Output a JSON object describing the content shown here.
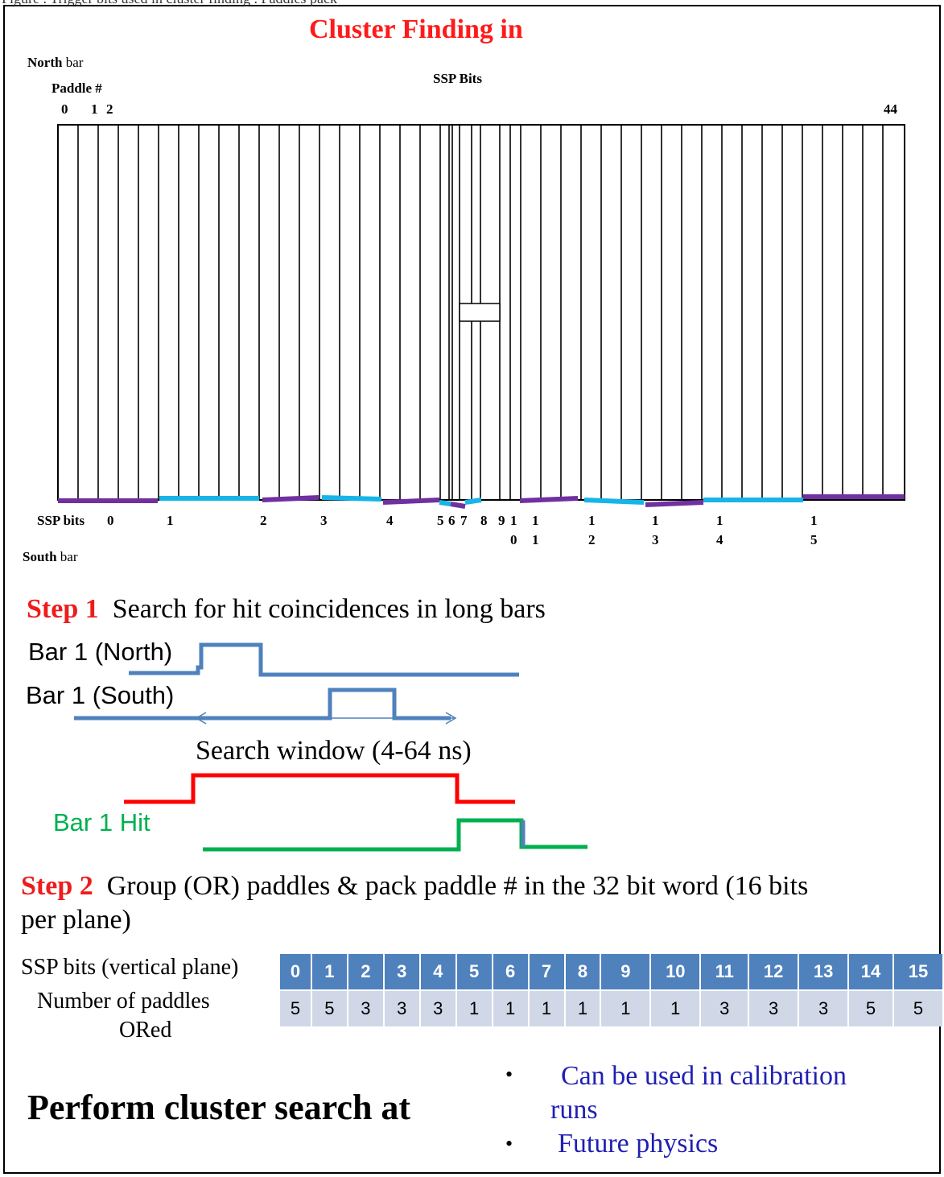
{
  "header_cut": "Figure   . Trigger bits used in cluster finding  .  Paddles pack",
  "title": "Cluster Finding in",
  "north_label": {
    "bold": "North",
    "rest": " bar"
  },
  "paddle_label": "Paddle #",
  "paddle_nums": [
    "0",
    "1",
    "2"
  ],
  "paddle_last": "44",
  "ssp_bits_header": "SSP Bits",
  "ssp_bits_row_label": "SSP bits",
  "ssp_bit_labels": [
    {
      "top": "0",
      "bottom": ""
    },
    {
      "top": "1",
      "bottom": ""
    },
    {
      "top": "2",
      "bottom": ""
    },
    {
      "top": "3",
      "bottom": ""
    },
    {
      "top": "4",
      "bottom": ""
    },
    {
      "top": "5",
      "bottom": ""
    },
    {
      "top": "6",
      "bottom": ""
    },
    {
      "top": "7",
      "bottom": ""
    },
    {
      "top": "8",
      "bottom": ""
    },
    {
      "top": "9",
      "bottom": ""
    },
    {
      "top": "1",
      "bottom": "0"
    },
    {
      "top": "1",
      "bottom": "1"
    },
    {
      "top": "1",
      "bottom": "2"
    },
    {
      "top": "1",
      "bottom": "3"
    },
    {
      "top": "1",
      "bottom": "4"
    },
    {
      "top": "1",
      "bottom": "5"
    }
  ],
  "south_label": {
    "bold": "South",
    "rest": " bar"
  },
  "step1": {
    "num": "Step 1",
    "text": "Search for hit coincidences in long bars"
  },
  "timing": {
    "north": "Bar 1 (North)",
    "south": "Bar 1 (South)",
    "window": "Search window (4-64 ns)",
    "hit": "Bar 1 Hit"
  },
  "step2": {
    "num": "Step 2",
    "text": "Group (OR) paddles & pack paddle # in the 32 bit word (16 bits",
    "text2": "per plane)"
  },
  "table": {
    "row1_label": "SSP bits (vertical plane)",
    "row2_label_a": "Number of paddles",
    "row2_label_b": "ORed",
    "bits": [
      "0",
      "1",
      "2",
      "3",
      "4",
      "5",
      "6",
      "7",
      "8",
      "9",
      "10",
      "11",
      "12",
      "13",
      "14",
      "15"
    ],
    "counts": [
      "5",
      "5",
      "3",
      "3",
      "3",
      "1",
      "1",
      "1",
      "1",
      "1",
      "1",
      "3",
      "3",
      "3",
      "5",
      "5"
    ]
  },
  "bottom_heading": "Perform cluster search at",
  "bullets": [
    "Can be used in calibration",
    "runs",
    "Future physics"
  ],
  "colors": {
    "purple": "#7030a0",
    "cyan": "#17b4e8",
    "blue": "#4f81bd",
    "red": "#ff0000",
    "green": "#00b050"
  }
}
